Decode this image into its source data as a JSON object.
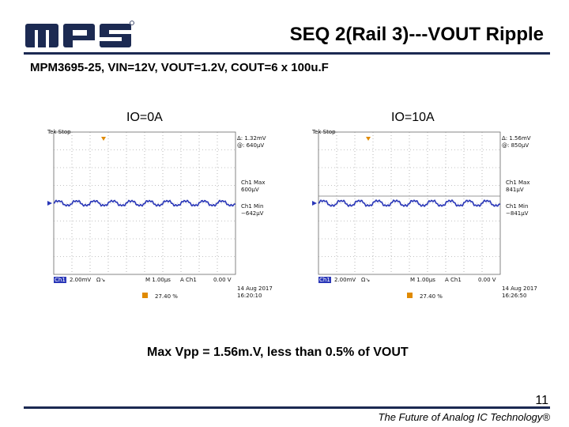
{
  "header": {
    "title": "SEQ 2(Rail 3)---VOUT Ripple",
    "subtitle": "MPM3695-25, VIN=12V, VOUT=1.2V, COUT=6 x 100u.F",
    "logo_text": "mps"
  },
  "scopes": [
    {
      "label": "IO=0A",
      "status": "Tek Stop",
      "delta": "Δ: 1.32mV",
      "at": "@: 640μV",
      "max_label": "Ch1 Max",
      "max_value": "600μV",
      "min_label": "Ch1 Min",
      "min_value": "−642μV",
      "ch_badge": "Ch1",
      "volts_div": "2.00mV",
      "bw": "Ω↘",
      "time_div": "M 1.00μs",
      "trig_ch": "A  Ch1",
      "trig_level": "0.00 V",
      "trig_pos": "27.40 %",
      "date": "14 Aug 2017",
      "time": "16:20:10"
    },
    {
      "label": "IO=10A",
      "status": "Tek Stop",
      "delta": "Δ: 1.56mV",
      "at": "@: 850μV",
      "max_label": "Ch1 Max",
      "max_value": "841μV",
      "min_label": "Ch1 Min",
      "min_value": "−841μV",
      "ch_badge": "Ch1",
      "volts_div": "2.00mV",
      "bw": "Ω↘",
      "time_div": "M 1.00μs",
      "trig_ch": "A  Ch1",
      "trig_level": "0.00 V",
      "trig_pos": "27.40 %",
      "date": "14 Aug 2017",
      "time": "16:26:50"
    }
  ],
  "summary": "Max Vpp = 1.56m.V, less than 0.5% of VOUT",
  "footer": {
    "page_number": "11",
    "tagline": "The Future of Analog IC Technology®"
  },
  "colors": {
    "rule": "#1c2a52",
    "logo": "#1c2a52",
    "trace": "#2a37b8",
    "grid": "#888888",
    "trigger": "#e08a00"
  }
}
